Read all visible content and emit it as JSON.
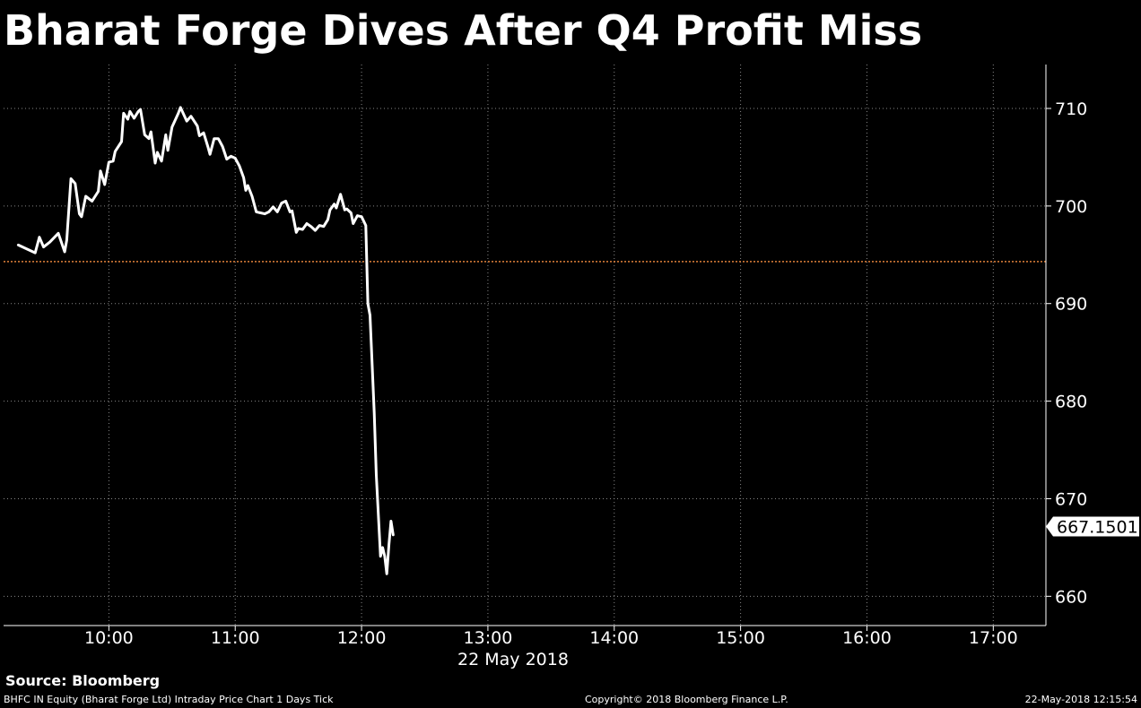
{
  "title": "Bharat Forge Dives After Q4 Profit Miss",
  "source": "Source: Bloomberg",
  "footer": {
    "left": "BHFC IN Equity (Bharat Forge Ltd) Intraday Price Chart 1 Days  Tick",
    "center": "Copyright© 2018 Bloomberg Finance L.P.",
    "right": "22-May-2018 12:15:54"
  },
  "colors": {
    "background": "#000000",
    "line": "#ffffff",
    "reference_line": "#e0803a",
    "grid": "#888888"
  },
  "chart_data": {
    "type": "line",
    "title": "Bharat Forge Dives After Q4 Profit Miss",
    "xlabel": "22 May 2018",
    "ylabel": "",
    "x_ticks": [
      "10:00",
      "11:00",
      "12:00",
      "13:00",
      "14:00",
      "15:00",
      "16:00",
      "17:00"
    ],
    "y_ticks": [
      660,
      670,
      680,
      690,
      700,
      710
    ],
    "xlim": [
      "09:10",
      "17:25"
    ],
    "ylim": [
      657,
      714.5
    ],
    "grid": true,
    "y_axis_position": "right",
    "last_value_label": "667.1501",
    "reference_line": {
      "value": 694.3,
      "style": "dotted"
    },
    "series": [
      {
        "points": [
          [
            "09:17",
            696.0
          ],
          [
            "09:22",
            695.5
          ],
          [
            "09:25",
            695.2
          ],
          [
            "09:27",
            696.8
          ],
          [
            "09:29",
            695.8
          ],
          [
            "09:32",
            696.3
          ],
          [
            "09:36",
            697.2
          ],
          [
            "09:39",
            695.3
          ],
          [
            "09:40",
            696.5
          ],
          [
            "09:42",
            702.8
          ],
          [
            "09:44",
            702.3
          ],
          [
            "09:46",
            699.2
          ],
          [
            "09:47",
            698.9
          ],
          [
            "09:49",
            701.0
          ],
          [
            "09:52",
            700.5
          ],
          [
            "09:55",
            701.5
          ],
          [
            "09:56",
            703.6
          ],
          [
            "09:58",
            702.2
          ],
          [
            "10:00",
            704.5
          ],
          [
            "10:02",
            704.6
          ],
          [
            "10:03",
            705.6
          ],
          [
            "10:06",
            706.6
          ],
          [
            "10:07",
            709.5
          ],
          [
            "10:09",
            708.9
          ],
          [
            "10:10",
            709.7
          ],
          [
            "10:12",
            709.0
          ],
          [
            "10:14",
            709.7
          ],
          [
            "10:15",
            709.9
          ],
          [
            "10:17",
            707.3
          ],
          [
            "10:19",
            706.9
          ],
          [
            "10:20",
            707.6
          ],
          [
            "10:22",
            704.4
          ],
          [
            "10:23",
            705.5
          ],
          [
            "10:25",
            704.6
          ],
          [
            "10:27",
            707.3
          ],
          [
            "10:28",
            705.7
          ],
          [
            "10:30",
            708.1
          ],
          [
            "10:33",
            709.5
          ],
          [
            "10:34",
            710.1
          ],
          [
            "10:37",
            708.7
          ],
          [
            "10:39",
            709.2
          ],
          [
            "10:42",
            708.2
          ],
          [
            "10:43",
            707.2
          ],
          [
            "10:45",
            707.5
          ],
          [
            "10:47",
            706.1
          ],
          [
            "10:48",
            705.3
          ],
          [
            "10:50",
            706.9
          ],
          [
            "10:52",
            706.9
          ],
          [
            "10:54",
            706.1
          ],
          [
            "10:56",
            704.8
          ],
          [
            "10:58",
            705.1
          ],
          [
            "11:00",
            704.9
          ],
          [
            "11:02",
            704.1
          ],
          [
            "11:04",
            702.9
          ],
          [
            "11:05",
            701.6
          ],
          [
            "11:06",
            702.1
          ],
          [
            "11:08",
            701.0
          ],
          [
            "11:10",
            699.4
          ],
          [
            "11:12",
            699.3
          ],
          [
            "11:14",
            699.2
          ],
          [
            "11:16",
            699.4
          ],
          [
            "11:18",
            699.9
          ],
          [
            "11:20",
            699.4
          ],
          [
            "11:22",
            700.3
          ],
          [
            "11:24",
            700.5
          ],
          [
            "11:26",
            699.4
          ],
          [
            "11:27",
            699.5
          ],
          [
            "11:29",
            697.3
          ],
          [
            "11:30",
            697.7
          ],
          [
            "11:32",
            697.6
          ],
          [
            "11:34",
            698.2
          ],
          [
            "11:36",
            697.9
          ],
          [
            "11:38",
            697.5
          ],
          [
            "11:40",
            698.0
          ],
          [
            "11:42",
            697.9
          ],
          [
            "11:44",
            698.6
          ],
          [
            "11:45",
            699.6
          ],
          [
            "11:47",
            700.2
          ],
          [
            "11:48",
            699.8
          ],
          [
            "11:50",
            701.2
          ],
          [
            "11:52",
            699.6
          ],
          [
            "11:53",
            699.7
          ],
          [
            "11:55",
            699.3
          ],
          [
            "11:56",
            698.2
          ],
          [
            "11:58",
            699.0
          ],
          [
            "12:00",
            698.9
          ],
          [
            "12:02",
            698.0
          ],
          [
            "12:03",
            690.0
          ],
          [
            "12:04",
            688.8
          ],
          [
            "12:06",
            678.8
          ],
          [
            "12:07",
            672.4
          ],
          [
            "12:09",
            664.1
          ],
          [
            "12:10",
            665.0
          ],
          [
            "12:11",
            664.1
          ],
          [
            "12:12",
            662.3
          ],
          [
            "12:13",
            665.3
          ],
          [
            "12:14",
            667.7
          ],
          [
            "12:15",
            666.3
          ]
        ]
      }
    ]
  }
}
